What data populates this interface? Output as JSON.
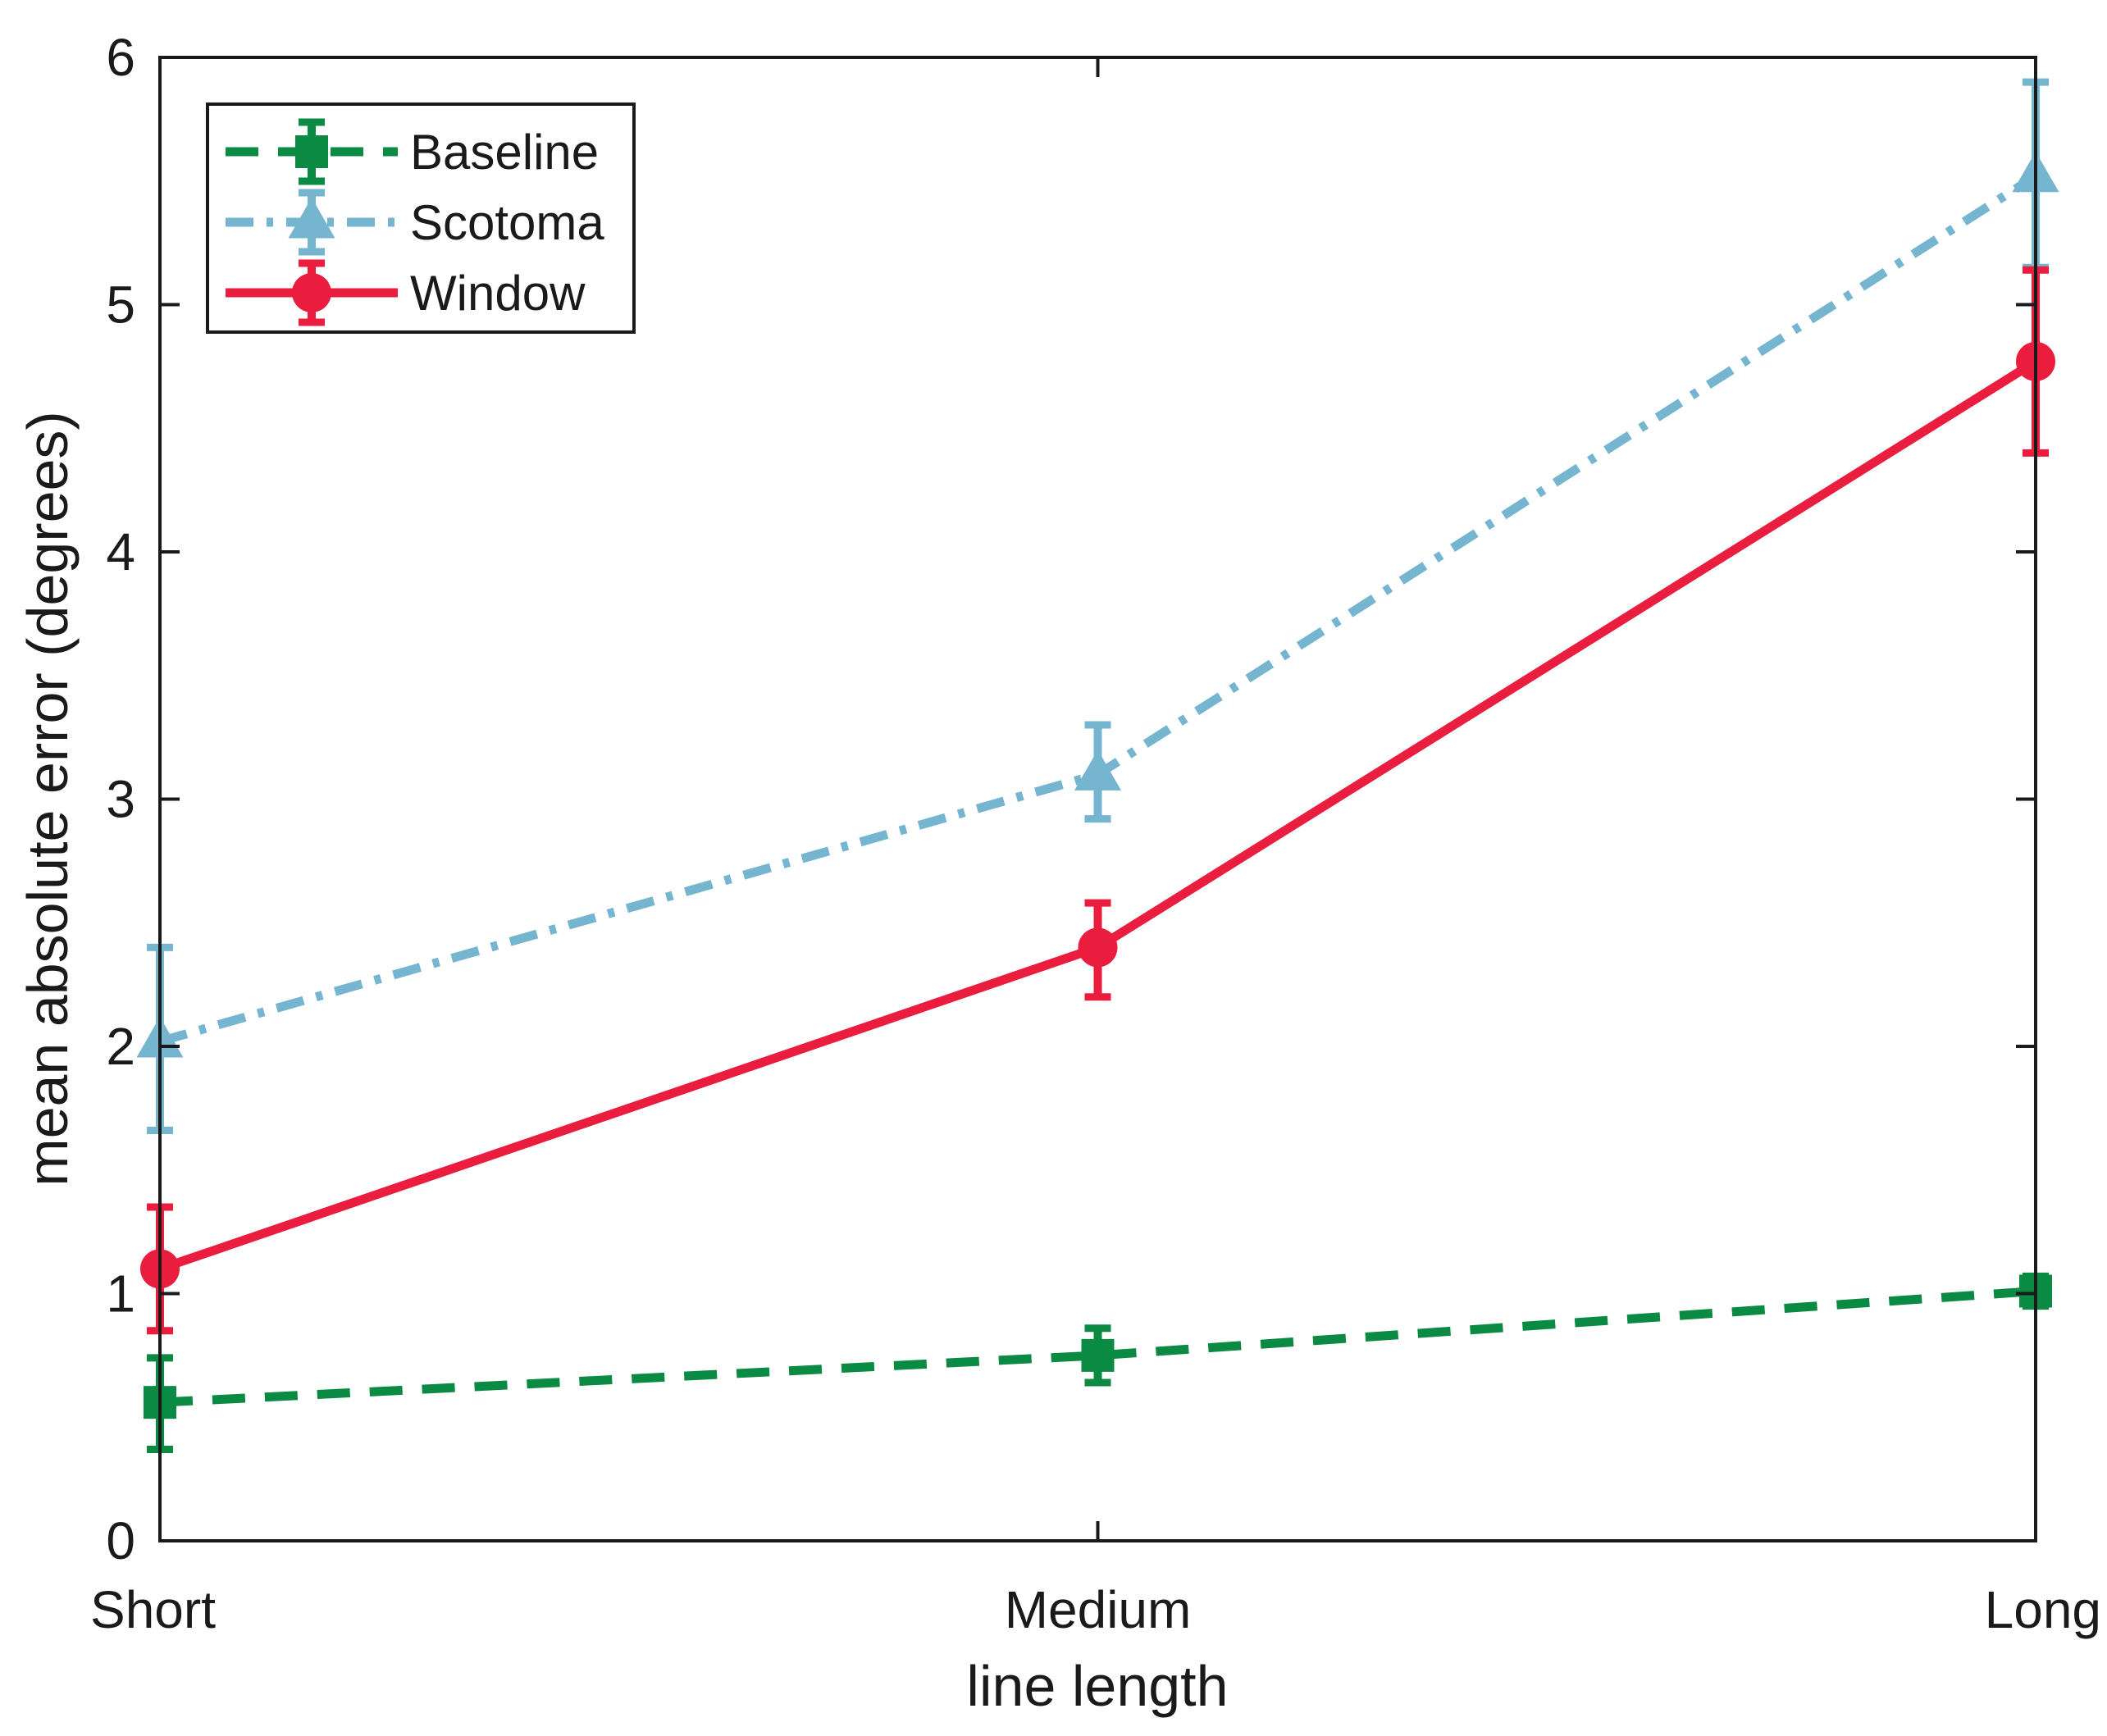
{
  "chart_data": {
    "type": "line",
    "title": "",
    "xlabel": "line length",
    "ylabel": "mean absolute error (degrees)",
    "categories": [
      "Short",
      "Medium",
      "Long"
    ],
    "ylim": [
      0,
      6
    ],
    "yticks": [
      0,
      1,
      2,
      3,
      4,
      5,
      6
    ],
    "legend_position": "top-left",
    "grid": false,
    "series": [
      {
        "name": "Baseline",
        "values": [
          0.56,
          0.75,
          1.01
        ],
        "err_low": [
          0.37,
          0.64,
          0.95
        ],
        "err_high": [
          0.74,
          0.86,
          1.07
        ],
        "color": "#0a8a43",
        "line_style": "dashed",
        "marker": "square"
      },
      {
        "name": "Scotoma",
        "values": [
          2.02,
          3.1,
          5.52
        ],
        "err_low": [
          1.66,
          2.92,
          5.15
        ],
        "err_high": [
          2.4,
          3.3,
          5.9
        ],
        "color": "#75b5d0",
        "line_style": "dash-dot",
        "marker": "triangle"
      },
      {
        "name": "Window",
        "values": [
          1.1,
          2.4,
          4.77
        ],
        "err_low": [
          0.85,
          2.2,
          4.4
        ],
        "err_high": [
          1.35,
          2.58,
          5.14
        ],
        "color": "#ea1d3f",
        "line_style": "solid",
        "marker": "circle"
      }
    ]
  }
}
